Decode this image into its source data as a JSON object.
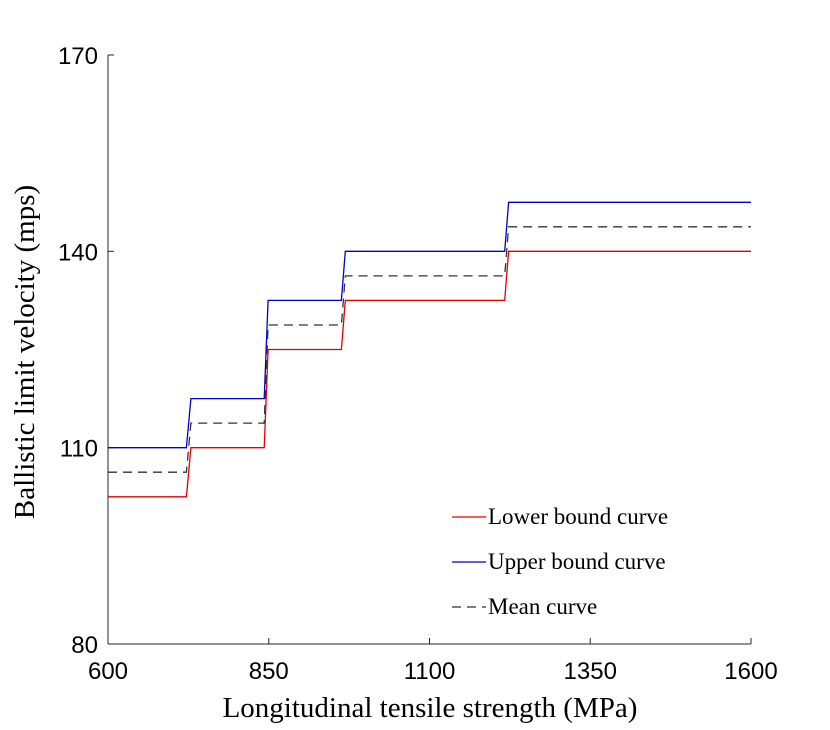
{
  "chart_data": {
    "type": "line",
    "title": "",
    "xlabel": "Longitudinal tensile strength (MPa)",
    "ylabel": "Ballistic limit velocity (mps)",
    "xlim": [
      600,
      1600
    ],
    "ylim": [
      80,
      170
    ],
    "xticks": [
      600,
      850,
      1100,
      1350,
      1600
    ],
    "yticks": [
      80,
      110,
      140,
      170
    ],
    "legend_position": "bottom-right",
    "series": [
      {
        "name": "Lower bound curve",
        "color": "#e00000",
        "dash": "solid",
        "x": [
          600,
          722,
          729,
          843,
          849,
          963,
          969,
          1217,
          1223,
          1600
        ],
        "y": [
          102.5,
          102.5,
          110,
          110,
          125,
          125,
          132.5,
          132.5,
          140,
          140
        ]
      },
      {
        "name": "Upper bound curve",
        "color": "#0000c8",
        "dash": "solid",
        "x": [
          600,
          722,
          729,
          843,
          849,
          963,
          969,
          1217,
          1223,
          1600
        ],
        "y": [
          110,
          110,
          117.5,
          117.5,
          132.5,
          132.5,
          140,
          140,
          147.5,
          147.5
        ]
      },
      {
        "name": "Mean curve",
        "color": "#333333",
        "dash": "dashed",
        "x": [
          600,
          722,
          729,
          843,
          849,
          963,
          969,
          1217,
          1223,
          1600
        ],
        "y": [
          106.25,
          106.25,
          113.75,
          113.75,
          128.75,
          128.75,
          136.25,
          136.25,
          143.75,
          143.75
        ]
      }
    ]
  }
}
